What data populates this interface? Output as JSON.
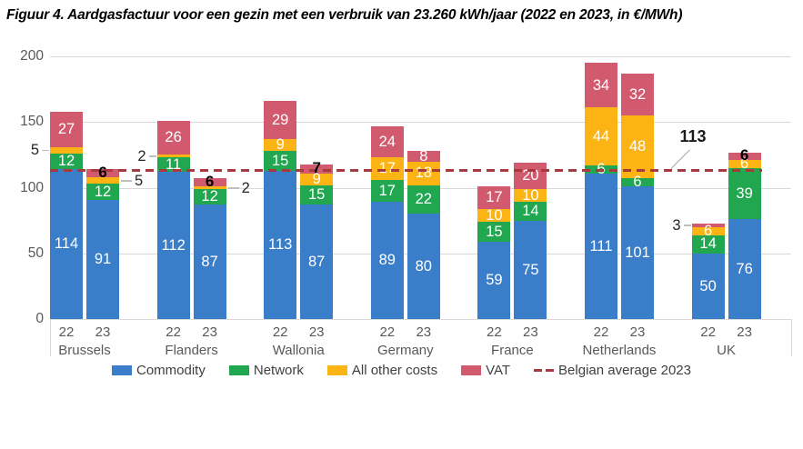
{
  "title": "Figuur 4. Aardgasfactuur voor een gezin met een verbruik van 23.260 kWh/jaar (2022 en 2023, in €/MWh)",
  "chart_data": {
    "type": "bar",
    "stacked": true,
    "title": "Figuur 4. Aardgasfactuur voor een gezin met een verbruik van 23.260 kWh/jaar (2022 en 2023, in €/MWh)",
    "unit": "€/MWh",
    "y_axis": {
      "min": 0,
      "max": 200,
      "ticks": [
        0,
        50,
        100,
        150,
        200
      ],
      "grid": true
    },
    "series": [
      "Commodity",
      "Network",
      "All other costs",
      "VAT"
    ],
    "colors": {
      "Commodity": "#3a7dc8",
      "Network": "#21a750",
      "All other costs": "#fcb415",
      "VAT": "#d25a6f",
      "average_line": "#a8393e",
      "grid": "#d9d9d9",
      "axis_text": "#595959"
    },
    "average_line": {
      "value": 113,
      "label": "113",
      "legend_label": "Belgian average 2023",
      "style": "dashed"
    },
    "groups": [
      {
        "label": "Brussels",
        "bars": [
          {
            "year": "22",
            "segments": [
              {
                "series": "Commodity",
                "value": 114,
                "placement": "inside"
              },
              {
                "series": "Network",
                "value": 12,
                "placement": "inside"
              },
              {
                "series": "All other costs",
                "value": 5,
                "placement": "callout-left"
              },
              {
                "series": "VAT",
                "value": 27,
                "placement": "inside"
              }
            ]
          },
          {
            "year": "23",
            "segments": [
              {
                "series": "Commodity",
                "value": 91,
                "placement": "inside"
              },
              {
                "series": "Network",
                "value": 12,
                "placement": "inside"
              },
              {
                "series": "All other costs",
                "value": 5,
                "placement": "callout-right"
              },
              {
                "series": "VAT",
                "value": 6,
                "placement": "black-top"
              }
            ]
          }
        ]
      },
      {
        "label": "Flanders",
        "bars": [
          {
            "year": "22",
            "segments": [
              {
                "series": "Commodity",
                "value": 112,
                "placement": "inside"
              },
              {
                "series": "Network",
                "value": 11,
                "placement": "inside"
              },
              {
                "series": "All other costs",
                "value": 2,
                "placement": "callout-left"
              },
              {
                "series": "VAT",
                "value": 26,
                "placement": "inside"
              }
            ]
          },
          {
            "year": "23",
            "segments": [
              {
                "series": "Commodity",
                "value": 87,
                "placement": "inside"
              },
              {
                "series": "Network",
                "value": 12,
                "placement": "inside"
              },
              {
                "series": "All other costs",
                "value": 2,
                "placement": "callout-right"
              },
              {
                "series": "VAT",
                "value": 6,
                "placement": "black-top"
              }
            ]
          }
        ]
      },
      {
        "label": "Wallonia",
        "bars": [
          {
            "year": "22",
            "segments": [
              {
                "series": "Commodity",
                "value": 113,
                "placement": "inside"
              },
              {
                "series": "Network",
                "value": 15,
                "placement": "inside"
              },
              {
                "series": "All other costs",
                "value": 9,
                "placement": "inside"
              },
              {
                "series": "VAT",
                "value": 29,
                "placement": "inside"
              }
            ]
          },
          {
            "year": "23",
            "segments": [
              {
                "series": "Commodity",
                "value": 87,
                "placement": "inside"
              },
              {
                "series": "Network",
                "value": 15,
                "placement": "inside"
              },
              {
                "series": "All other costs",
                "value": 9,
                "placement": "inside"
              },
              {
                "series": "VAT",
                "value": 7,
                "placement": "black-top"
              }
            ]
          }
        ]
      },
      {
        "label": "Germany",
        "bars": [
          {
            "year": "22",
            "segments": [
              {
                "series": "Commodity",
                "value": 89,
                "placement": "inside"
              },
              {
                "series": "Network",
                "value": 17,
                "placement": "inside"
              },
              {
                "series": "All other costs",
                "value": 17,
                "placement": "inside"
              },
              {
                "series": "VAT",
                "value": 24,
                "placement": "inside"
              }
            ]
          },
          {
            "year": "23",
            "segments": [
              {
                "series": "Commodity",
                "value": 80,
                "placement": "inside"
              },
              {
                "series": "Network",
                "value": 22,
                "placement": "inside"
              },
              {
                "series": "All other costs",
                "value": 18,
                "placement": "inside"
              },
              {
                "series": "VAT",
                "value": 8,
                "placement": "inside"
              }
            ]
          }
        ]
      },
      {
        "label": "France",
        "bars": [
          {
            "year": "22",
            "segments": [
              {
                "series": "Commodity",
                "value": 59,
                "placement": "inside"
              },
              {
                "series": "Network",
                "value": 15,
                "placement": "inside"
              },
              {
                "series": "All other costs",
                "value": 10,
                "placement": "inside"
              },
              {
                "series": "VAT",
                "value": 17,
                "placement": "inside"
              }
            ]
          },
          {
            "year": "23",
            "segments": [
              {
                "series": "Commodity",
                "value": 75,
                "placement": "inside"
              },
              {
                "series": "Network",
                "value": 14,
                "placement": "inside"
              },
              {
                "series": "All other costs",
                "value": 10,
                "placement": "inside"
              },
              {
                "series": "VAT",
                "value": 20,
                "placement": "inside"
              }
            ]
          }
        ]
      },
      {
        "label": "Netherlands",
        "bars": [
          {
            "year": "22",
            "segments": [
              {
                "series": "Commodity",
                "value": 111,
                "placement": "inside"
              },
              {
                "series": "Network",
                "value": 6,
                "placement": "inside"
              },
              {
                "series": "All other costs",
                "value": 44,
                "placement": "inside"
              },
              {
                "series": "VAT",
                "value": 34,
                "placement": "inside"
              }
            ]
          },
          {
            "year": "23",
            "segments": [
              {
                "series": "Commodity",
                "value": 101,
                "placement": "inside"
              },
              {
                "series": "Network",
                "value": 6,
                "placement": "inside"
              },
              {
                "series": "All other costs",
                "value": 48,
                "placement": "inside"
              },
              {
                "series": "VAT",
                "value": 32,
                "placement": "inside"
              }
            ]
          }
        ]
      },
      {
        "label": "UK",
        "bars": [
          {
            "year": "22",
            "segments": [
              {
                "series": "Commodity",
                "value": 50,
                "placement": "inside"
              },
              {
                "series": "Network",
                "value": 14,
                "placement": "inside"
              },
              {
                "series": "All other costs",
                "value": 6,
                "placement": "inside"
              },
              {
                "series": "VAT",
                "value": 3,
                "placement": "callout-left"
              }
            ]
          },
          {
            "year": "23",
            "segments": [
              {
                "series": "Commodity",
                "value": 76,
                "placement": "inside"
              },
              {
                "series": "Network",
                "value": 39,
                "placement": "inside"
              },
              {
                "series": "All other costs",
                "value": 6,
                "placement": "inside"
              },
              {
                "series": "VAT",
                "value": 6,
                "placement": "black-top"
              }
            ]
          }
        ]
      }
    ],
    "legend": [
      {
        "label": "Commodity",
        "series": "Commodity",
        "type": "box"
      },
      {
        "label": "Network",
        "series": "Network",
        "type": "box"
      },
      {
        "label": "All other costs",
        "series": "All other costs",
        "type": "box"
      },
      {
        "label": "VAT",
        "series": "VAT",
        "type": "box"
      },
      {
        "label": "Belgian average 2023",
        "series": "average_line",
        "type": "dash"
      }
    ]
  }
}
